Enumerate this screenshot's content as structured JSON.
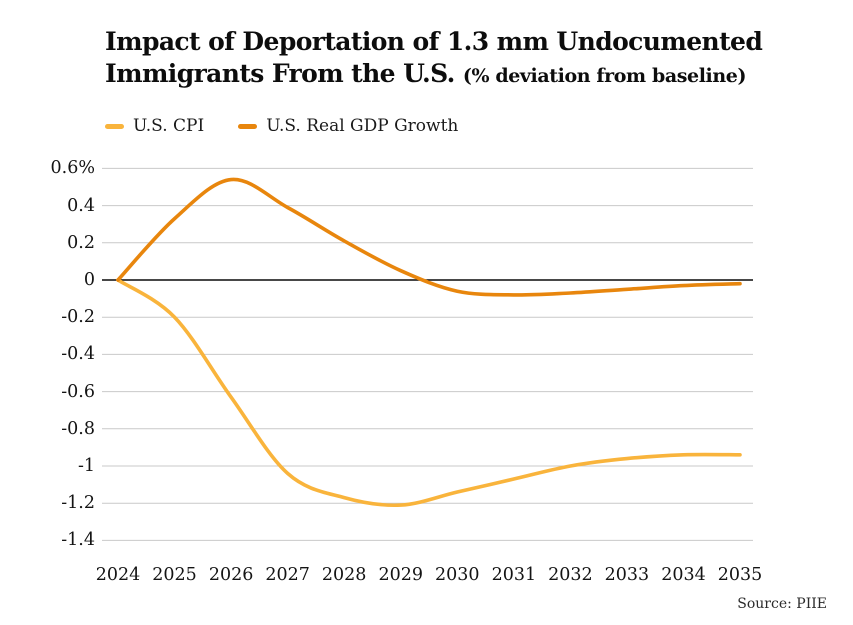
{
  "title": {
    "line1": "Impact of Deportation of 1.3 mm Undocumented",
    "line2": "Immigrants From the U.S.",
    "subtitle": "(% deviation from baseline)"
  },
  "legend": {
    "items": [
      {
        "label": "U.S. CPI",
        "color": "#F9B43C"
      },
      {
        "label": "U.S. Real GDP Growth",
        "color": "#E8860D"
      }
    ]
  },
  "source": {
    "text": "Source: PIIE"
  },
  "chart_data": {
    "type": "line",
    "title": "Impact of Deportation of 1.3 mm Undocumented Immigrants From the U.S. (% deviation from baseline)",
    "x": [
      2024,
      2025,
      2026,
      2027,
      2028,
      2029,
      2030,
      2031,
      2032,
      2033,
      2034,
      2035
    ],
    "series": [
      {
        "name": "U.S. CPI",
        "color": "#F9B43C",
        "values": [
          0,
          -0.2,
          -0.63,
          -1.04,
          -1.17,
          -1.21,
          -1.14,
          -1.07,
          -1.0,
          -0.96,
          -0.94,
          -0.94
        ]
      },
      {
        "name": "U.S. Real GDP Growth",
        "color": "#E8860D",
        "values": [
          0,
          0.33,
          0.54,
          0.39,
          0.21,
          0.05,
          -0.06,
          -0.08,
          -0.07,
          -0.05,
          -0.03,
          -0.02
        ]
      }
    ],
    "ylim": [
      -1.4,
      0.6
    ],
    "ytick_values": [
      0.6,
      0.4,
      0.2,
      0,
      -0.2,
      -0.4,
      -0.6,
      -0.8,
      -1,
      -1.2,
      -1.4
    ],
    "ytick_labels": [
      "0.6%",
      "0.4",
      "0.2",
      "0",
      "-0.2",
      "-0.4",
      "-0.6",
      "-0.8",
      "-1",
      "-1.2",
      "-1.4"
    ],
    "grid": true,
    "zero_line": true,
    "gridline_color": "#c9c9c9",
    "zero_line_color": "#0a0a0a",
    "legend_position": "top-left"
  }
}
